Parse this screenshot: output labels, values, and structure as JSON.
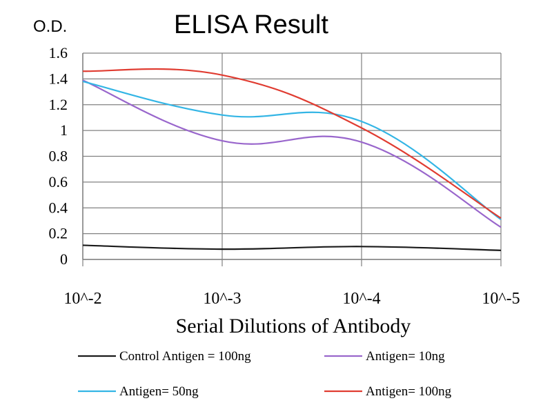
{
  "chart_data": {
    "type": "line",
    "title": "ELISA Result",
    "ylabel": "O.D.",
    "xlabel": "Serial Dilutions of Antibody",
    "categories": [
      "10^-2",
      "10^-3",
      "10^-4",
      "10^-5"
    ],
    "yticks": [
      "0",
      "0.2",
      "0.4",
      "0.6",
      "0.8",
      "1",
      "1.2",
      "1.4",
      "1.6"
    ],
    "ylim": [
      0,
      1.6
    ],
    "grid": true,
    "legend_position": "bottom",
    "series": [
      {
        "name": "Control Antigen = 100ng",
        "color": "#1a1a1a",
        "values": [
          0.11,
          0.08,
          0.1,
          0.07
        ]
      },
      {
        "name": "Antigen= 10ng",
        "color": "#9966cc",
        "values": [
          1.39,
          0.92,
          0.91,
          0.25
        ]
      },
      {
        "name": "Antigen= 50ng",
        "color": "#33b5e5",
        "values": [
          1.38,
          1.12,
          1.07,
          0.31
        ]
      },
      {
        "name": "Antigen= 100ng",
        "color": "#e03c31",
        "values": [
          1.46,
          1.43,
          1.02,
          0.32
        ]
      }
    ]
  }
}
